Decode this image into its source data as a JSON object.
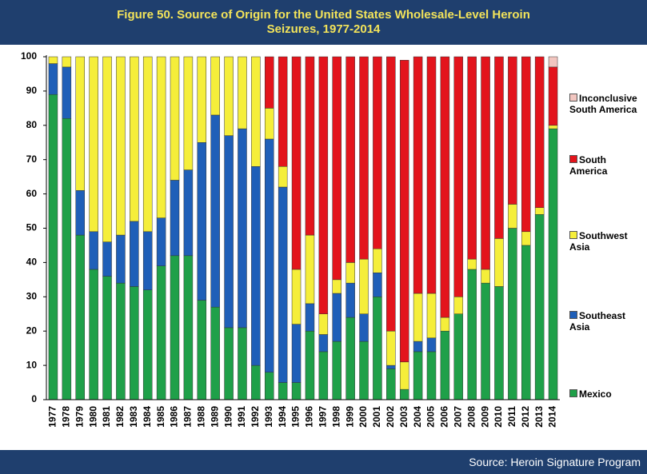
{
  "chart_data": {
    "type": "stacked_bar",
    "title": "Figure 50.  Source of Origin for the United States Wholesale-Level Heroin Seizures, 1977-2014",
    "source": "Source:  Heroin Signature Program",
    "categories": [
      "1977",
      "1978",
      "1979",
      "1980",
      "1981",
      "1982",
      "1983",
      "1984",
      "1985",
      "1986",
      "1987",
      "1988",
      "1989",
      "1990",
      "1991",
      "1992",
      "1993",
      "1994",
      "1995",
      "1996",
      "1997",
      "1998",
      "1999",
      "2000",
      "2001",
      "2002",
      "2003",
      "2004",
      "2005",
      "2006",
      "2007",
      "2008",
      "2009",
      "2010",
      "2011",
      "2012",
      "2013",
      "2014"
    ],
    "series": [
      {
        "name": "Mexico",
        "color": "#1fa049",
        "values": [
          89,
          82,
          48,
          38,
          36,
          34,
          33,
          32,
          39,
          42,
          42,
          29,
          27,
          21,
          21,
          10,
          8,
          5,
          5,
          20,
          14,
          17,
          24,
          17,
          30,
          9,
          3,
          14,
          14,
          20,
          25,
          38,
          34,
          33,
          50,
          45,
          54,
          79
        ]
      },
      {
        "name": "Southeast Asia",
        "color": "#1f5fb8",
        "values": [
          9,
          15,
          13,
          11,
          10,
          14,
          19,
          17,
          14,
          22,
          25,
          46,
          56,
          56,
          58,
          58,
          68,
          57,
          17,
          8,
          5,
          14,
          10,
          8,
          7,
          1,
          0,
          3,
          4,
          0,
          0,
          0,
          0,
          0,
          0,
          0,
          0,
          0
        ]
      },
      {
        "name": "Southwest Asia",
        "color": "#f5ee3a",
        "values": [
          2,
          3,
          39,
          51,
          54,
          52,
          48,
          51,
          47,
          36,
          33,
          25,
          17,
          23,
          21,
          32,
          9,
          6,
          16,
          20,
          6,
          4,
          6,
          16,
          7,
          10,
          8,
          14,
          13,
          4,
          5,
          3,
          4,
          14,
          7,
          4,
          2,
          1
        ]
      },
      {
        "name": "South America",
        "color": "#e3141c",
        "values": [
          0,
          0,
          0,
          0,
          0,
          0,
          0,
          0,
          0,
          0,
          0,
          0,
          0,
          0,
          0,
          0,
          15,
          32,
          62,
          52,
          75,
          65,
          60,
          59,
          56,
          80,
          88,
          69,
          69,
          76,
          70,
          59,
          62,
          53,
          43,
          51,
          44,
          17
        ]
      },
      {
        "name": "Inconclusive South America",
        "color": "#f2c6c0",
        "values": [
          0,
          0,
          0,
          0,
          0,
          0,
          0,
          0,
          0,
          0,
          0,
          0,
          0,
          0,
          0,
          0,
          0,
          0,
          0,
          0,
          0,
          0,
          0,
          0,
          0,
          0,
          0,
          0,
          0,
          0,
          0,
          0,
          0,
          0,
          0,
          0,
          0,
          3
        ]
      }
    ],
    "ylim": [
      0,
      100
    ],
    "yticks": [
      0,
      10,
      20,
      30,
      40,
      50,
      60,
      70,
      80,
      90,
      100
    ],
    "grid": false
  }
}
